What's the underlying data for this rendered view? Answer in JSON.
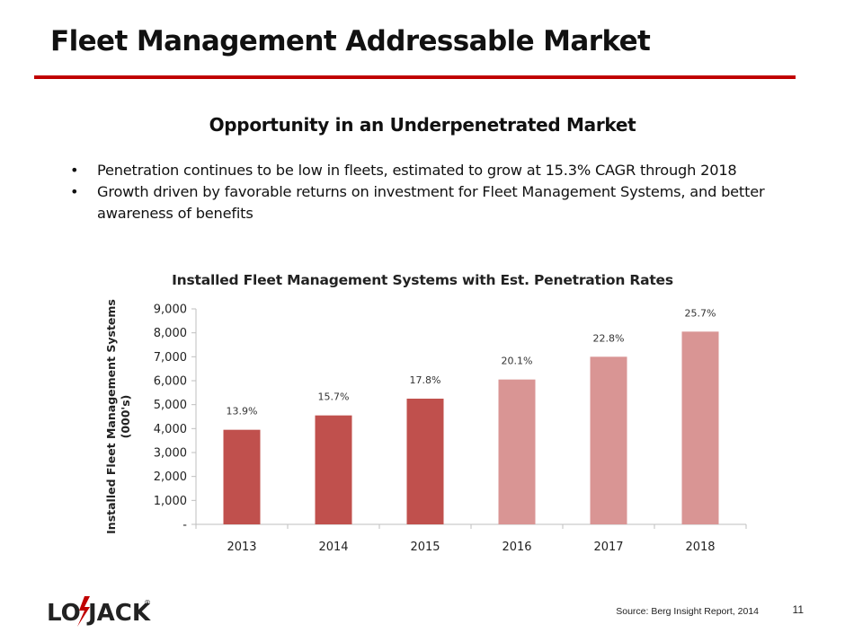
{
  "slide": {
    "title": "Fleet Management Addressable Market",
    "subtitle": "Opportunity in an Underpenetrated Market",
    "bullets": [
      "Penetration continues to be low in fleets, estimated to grow at 15.3% CAGR through 2018",
      "Growth driven by favorable returns on investment for Fleet Management Systems, and better awareness of benefits"
    ],
    "bullet_char": "•",
    "logo_text_left": "LO",
    "logo_text_right": "JACK",
    "logo_mark": "®",
    "source": "Source: Berg Insight Report, 2014",
    "page_number": "11"
  },
  "colors": {
    "accent_rule": "#c00000",
    "bar_actual": "#c0504d",
    "bar_estimate": "#d99594",
    "axis": "#bfbfbf"
  },
  "chart_data": {
    "type": "bar",
    "title": "Installed Fleet Management Systems with Est. Penetration Rates",
    "categories": [
      "2013",
      "2014",
      "2015",
      "2016",
      "2017",
      "2018"
    ],
    "values": [
      3950,
      4550,
      5250,
      6050,
      7000,
      8050
    ],
    "data_labels": [
      "13.9%",
      "15.7%",
      "17.8%",
      "20.1%",
      "22.8%",
      "25.7%"
    ],
    "estimated": [
      false,
      false,
      false,
      true,
      true,
      true
    ],
    "xlabel": "",
    "ylabel_lines": [
      "Installed Fleet Management Systems",
      "(000's)"
    ],
    "ylim": [
      0,
      9000
    ],
    "yticks": [
      0,
      1000,
      2000,
      3000,
      4000,
      5000,
      6000,
      7000,
      8000,
      9000
    ],
    "ytick_labels": [
      "-",
      "1,000",
      "2,000",
      "3,000",
      "4,000",
      "5,000",
      "6,000",
      "7,000",
      "8,000",
      "9,000"
    ],
    "grid": false,
    "legend": "none"
  }
}
